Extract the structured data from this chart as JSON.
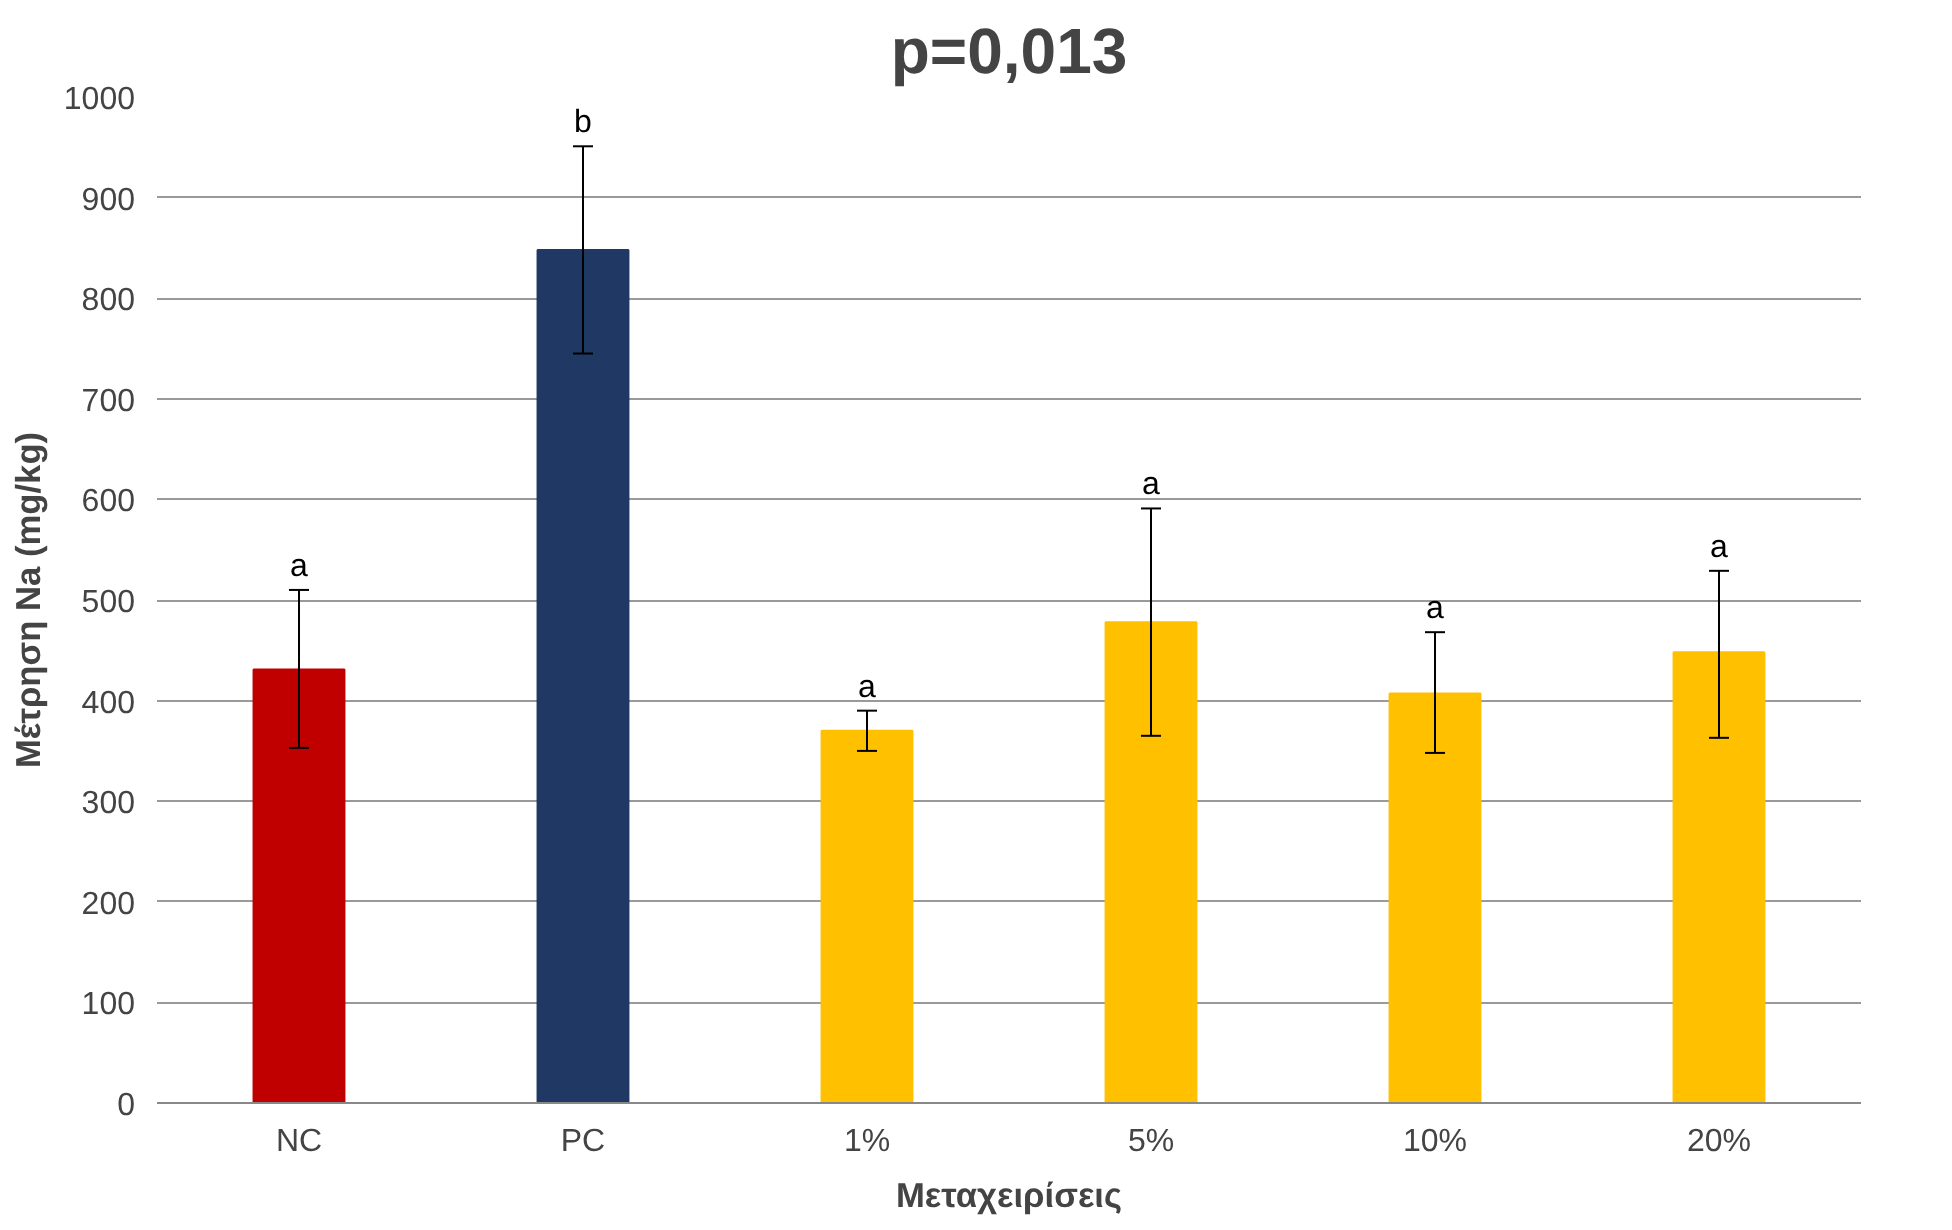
{
  "chart_data": {
    "type": "bar",
    "title": "p=0,013",
    "xlabel": "Μεταχειρίσεις",
    "ylabel": "Μέτρηση Na (mg/kg)",
    "categories": [
      "NC",
      "PC",
      "1%",
      "5%",
      "10%",
      "20%"
    ],
    "values": [
      431,
      848,
      370,
      478,
      407,
      448
    ],
    "colors": [
      "#c00000",
      "#1f3864",
      "#ffc000",
      "#ffc000",
      "#ffc000",
      "#ffc000"
    ],
    "errors": [
      [
        353,
        510
      ],
      [
        745,
        951
      ],
      [
        350,
        390
      ],
      [
        365,
        591
      ],
      [
        348,
        468
      ],
      [
        363,
        529
      ]
    ],
    "annotations": [
      {
        "text": "a",
        "x": "NC",
        "y": 510
      },
      {
        "text": "b",
        "x": "PC",
        "y": 951
      },
      {
        "text": "a",
        "x": "1%",
        "y": 390
      },
      {
        "text": "a",
        "x": "5%",
        "y": 591
      },
      {
        "text": "a",
        "x": "10%",
        "y": 468
      },
      {
        "text": "a",
        "x": "20%",
        "y": 529
      }
    ],
    "ylim": [
      0,
      1000
    ],
    "yticks": [
      0,
      100,
      200,
      300,
      400,
      500,
      600,
      700,
      800,
      900,
      1000
    ],
    "grid": "y"
  }
}
